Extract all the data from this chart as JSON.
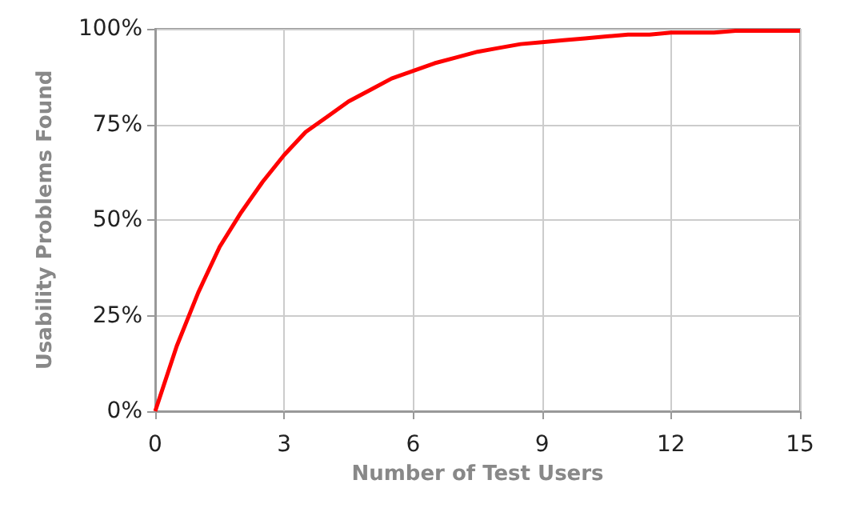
{
  "chart_data": {
    "type": "line",
    "xlabel": "Number of Test Users",
    "ylabel": "Usability Problems Found",
    "x": [
      0,
      0.5,
      1,
      1.5,
      2,
      2.5,
      3,
      3.5,
      4,
      4.5,
      5,
      5.5,
      6,
      6.5,
      7,
      7.5,
      8,
      8.5,
      9,
      9.5,
      10,
      10.5,
      11,
      11.5,
      12,
      12.5,
      13,
      13.5,
      14,
      14.5,
      15
    ],
    "series": [
      {
        "color": "#ff0000",
        "values": [
          0,
          17,
          31,
          43,
          52,
          60,
          67,
          73,
          77,
          81,
          84,
          87,
          89,
          91,
          92.5,
          94,
          95,
          96,
          96.5,
          97,
          97.5,
          98,
          98.5,
          98.5,
          99,
          99,
          99,
          99.5,
          99.5,
          99.5,
          99.5
        ]
      }
    ],
    "xlim": [
      0,
      15
    ],
    "xticks": [
      0,
      3,
      6,
      9,
      12,
      15
    ],
    "ylim": [
      0,
      100
    ],
    "yticks": [
      {
        "value": 0,
        "label": "0%"
      },
      {
        "value": 25,
        "label": "25%"
      },
      {
        "value": 50,
        "label": "50%"
      },
      {
        "value": 75,
        "label": "75%"
      },
      {
        "value": 100,
        "label": "100%"
      }
    ],
    "grid": true,
    "marker": "none",
    "line_style": "solid"
  }
}
